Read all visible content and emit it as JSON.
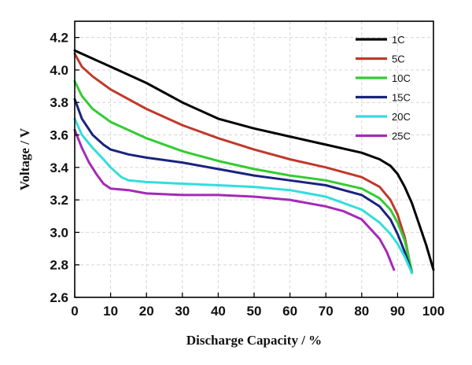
{
  "chart_data": {
    "type": "line",
    "xlabel": "Discharge Capacity / %",
    "ylabel": "Voltage / V",
    "xlim": [
      0,
      100
    ],
    "ylim": [
      2.6,
      4.3
    ],
    "xticks": [
      0,
      10,
      20,
      30,
      40,
      50,
      60,
      70,
      80,
      90,
      100
    ],
    "yticks": [
      2.6,
      2.8,
      3.0,
      3.2,
      3.4,
      3.6,
      3.8,
      4.0,
      4.2
    ],
    "ytick_labels": [
      "2.6",
      "2.8",
      "3.0",
      "3.2",
      "3.4",
      "3.6",
      "3.8",
      "4.0",
      "4.2"
    ],
    "grid": true,
    "legend_position": "top-right",
    "series": [
      {
        "name": "1C",
        "color": "#000000",
        "x": [
          0,
          5,
          10,
          20,
          30,
          40,
          50,
          60,
          70,
          80,
          85,
          88,
          90,
          92,
          94,
          96,
          98,
          100
        ],
        "y": [
          4.12,
          4.07,
          4.02,
          3.92,
          3.8,
          3.7,
          3.64,
          3.59,
          3.54,
          3.49,
          3.45,
          3.41,
          3.36,
          3.28,
          3.18,
          3.05,
          2.92,
          2.77
        ]
      },
      {
        "name": "5C",
        "color": "#c0392b",
        "x": [
          0,
          2,
          5,
          10,
          20,
          30,
          40,
          50,
          60,
          70,
          80,
          85,
          88,
          90,
          92,
          94
        ],
        "y": [
          4.1,
          4.02,
          3.96,
          3.88,
          3.76,
          3.66,
          3.58,
          3.51,
          3.45,
          3.4,
          3.34,
          3.28,
          3.2,
          3.11,
          2.97,
          2.75
        ]
      },
      {
        "name": "10C",
        "color": "#33cc33",
        "x": [
          0,
          2,
          5,
          10,
          20,
          30,
          40,
          50,
          60,
          70,
          80,
          85,
          88,
          90,
          92,
          94
        ],
        "y": [
          3.93,
          3.84,
          3.76,
          3.68,
          3.58,
          3.5,
          3.44,
          3.39,
          3.35,
          3.32,
          3.27,
          3.21,
          3.14,
          3.06,
          2.95,
          2.76
        ]
      },
      {
        "name": "15C",
        "color": "#1a237e",
        "x": [
          0,
          2,
          5,
          8,
          10,
          15,
          20,
          30,
          40,
          50,
          60,
          70,
          80,
          85,
          88,
          90,
          92,
          94
        ],
        "y": [
          3.82,
          3.7,
          3.6,
          3.54,
          3.51,
          3.48,
          3.46,
          3.43,
          3.39,
          3.35,
          3.32,
          3.29,
          3.23,
          3.16,
          3.08,
          2.99,
          2.88,
          2.75
        ]
      },
      {
        "name": "20C",
        "color": "#33dddd",
        "x": [
          0,
          2,
          5,
          8,
          10,
          13,
          15,
          20,
          30,
          40,
          50,
          60,
          70,
          80,
          85,
          88,
          90,
          92,
          94
        ],
        "y": [
          3.7,
          3.6,
          3.52,
          3.45,
          3.4,
          3.34,
          3.32,
          3.31,
          3.3,
          3.29,
          3.28,
          3.26,
          3.22,
          3.14,
          3.06,
          2.99,
          2.93,
          2.85,
          2.75
        ]
      },
      {
        "name": "25C",
        "color": "#a52ab5",
        "x": [
          0,
          2,
          4,
          6,
          8,
          10,
          15,
          20,
          30,
          40,
          50,
          60,
          70,
          75,
          80,
          85,
          87,
          89
        ],
        "y": [
          3.63,
          3.52,
          3.43,
          3.36,
          3.3,
          3.27,
          3.26,
          3.24,
          3.23,
          3.23,
          3.22,
          3.2,
          3.16,
          3.13,
          3.08,
          2.96,
          2.88,
          2.77
        ]
      }
    ]
  }
}
